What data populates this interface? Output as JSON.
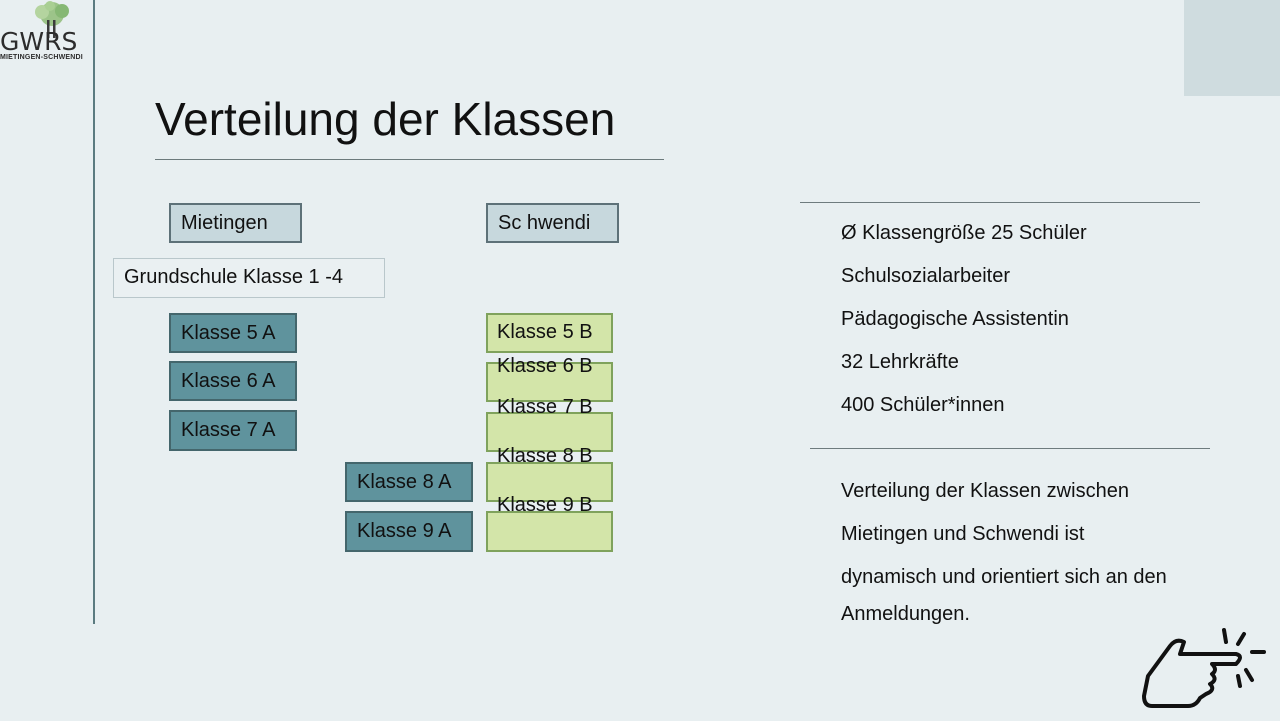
{
  "logo": {
    "word": "GWRS",
    "subtitle": "MIETINGEN-SCHWENDI"
  },
  "title": "Verteilung der Klassen",
  "locations": {
    "left": "Mietingen",
    "right": "Sc hwendi"
  },
  "grundschule": "Grundschule Klasse 1 -4",
  "mietingen_classes": [
    "Klasse 5 A",
    "Klasse 6 A",
    "Klasse 7 A",
    "Klasse  8  A",
    "Klasse 9 A"
  ],
  "schwendi_classes": [
    "Klasse  5  B",
    "Klasse 6 B",
    "Klasse 7 B",
    "Klasse  8  B",
    "Klasse 9 B"
  ],
  "facts": [
    "Ø Klassengröße 25 Schüler",
    "Schulsozialarbeiter",
    "Pädagogische Assistentin",
    "32 Lehrkräfte",
    "400 Schüler*innen"
  ],
  "note_lines": [
    "Verteilung der Klassen zwischen",
    "Mietingen und Schwendi ist",
    "dynamisch und orientiert sich an den",
    "Anmeldungen."
  ],
  "colors": {
    "background": "#e8eff1",
    "teal_box": "#5f939d",
    "green_box": "#d3e5a9",
    "header_box": "#c7d8dd"
  },
  "icons": {
    "logo": "tree-logo-icon",
    "pointer": "pointing-hand-icon"
  }
}
